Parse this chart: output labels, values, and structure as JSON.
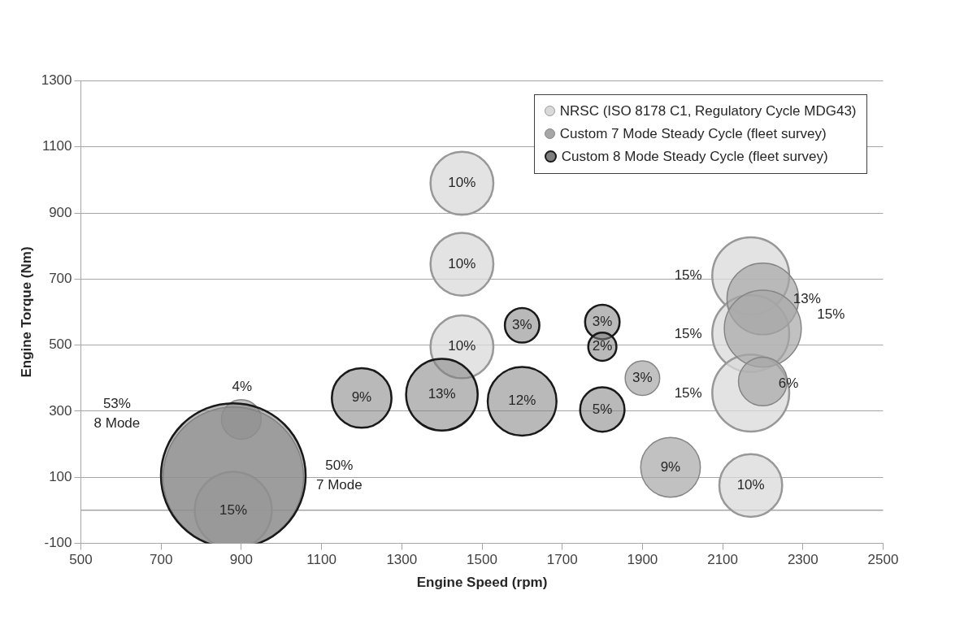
{
  "chart_data": {
    "type": "bubble",
    "xlabel": "Engine Speed (rpm)",
    "ylabel": "Engine Torque (Nm)",
    "xlim": [
      500,
      2500
    ],
    "xticks": [
      500,
      700,
      900,
      1100,
      1300,
      1500,
      1700,
      1900,
      2100,
      2300,
      2500
    ],
    "ylim": [
      -100,
      1300
    ],
    "yticks": [
      -100,
      100,
      300,
      500,
      700,
      900,
      1100,
      1300
    ],
    "grid": "y",
    "legend": "top right",
    "ref_lines": [
      {
        "axis": "y",
        "value": 0,
        "color": "#a6a6a6"
      }
    ],
    "series": [
      {
        "name": "NRSC (ISO 8178 C1, Regulatory Cycle MDG43)",
        "color": "#d9d9d9",
        "x": [
          1450,
          1450,
          1450,
          2170,
          2170,
          2170,
          2170,
          880
        ],
        "values": [
          990,
          745,
          495,
          710,
          535,
          355,
          75,
          0
        ],
        "sizes": [
          0.189,
          0.189,
          0.189,
          0.283,
          0.283,
          0.283,
          0.189,
          0.283
        ]
      },
      {
        "name": "Custom 7 Mode Steady Cycle (fleet survey)",
        "color": "#a6a6a6",
        "x": [
          900,
          1900,
          1970,
          2200,
          2200,
          2200,
          880
        ],
        "values": [
          275,
          400,
          130,
          640,
          550,
          390,
          100
        ],
        "sizes": [
          0.075,
          0.057,
          0.17,
          0.245,
          0.283,
          0.113,
          0.943
        ]
      },
      {
        "name": "Custom 8 Mode Steady Cycle (fleet survey)",
        "color": "#7f7f7f",
        "x": [
          880,
          1200,
          1400,
          1600,
          1600,
          1800,
          1800,
          1800
        ],
        "values": [
          105,
          340,
          350,
          330,
          560,
          570,
          495,
          305
        ],
        "sizes": [
          1,
          0.17,
          0.245,
          0.226,
          0.057,
          0.057,
          0.038,
          0.094
        ]
      }
    ],
    "annotations": [
      {
        "text": "10%",
        "x": 1450,
        "y": 990
      },
      {
        "text": "10%",
        "x": 1450,
        "y": 745
      },
      {
        "text": "10%",
        "x": 1450,
        "y": 495
      },
      "15%",
      "15%",
      "15%",
      {
        "text": "10%",
        "x": 2170,
        "y": 75
      },
      {
        "text": "15%",
        "x": 880,
        "y": 0
      },
      "4%",
      {
        "text": "3%",
        "x": 1900,
        "y": 400
      },
      {
        "text": "9%",
        "x": 1970,
        "y": 130
      },
      "13%",
      "15%",
      "6%",
      "50%\n7 Mode",
      "53%\n8 Mode",
      {
        "text": "9%",
        "x": 1200,
        "y": 340
      },
      {
        "text": "13%",
        "x": 1400,
        "y": 350
      },
      {
        "text": "12%",
        "x": 1600,
        "y": 330
      },
      {
        "text": "3%",
        "x": 1600,
        "y": 560
      },
      {
        "text": "3%",
        "x": 1800,
        "y": 570
      },
      {
        "text": "2%",
        "x": 1800,
        "y": 495
      },
      {
        "text": "5%",
        "x": 1800,
        "y": 305
      }
    ]
  }
}
